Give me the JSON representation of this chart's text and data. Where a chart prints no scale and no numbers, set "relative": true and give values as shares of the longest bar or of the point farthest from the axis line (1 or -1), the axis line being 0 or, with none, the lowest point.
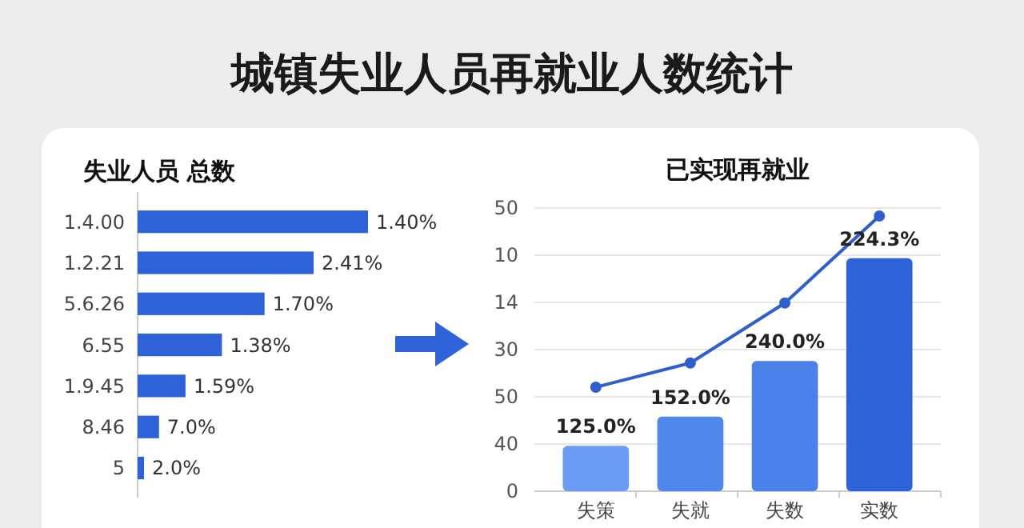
{
  "chart_data": [
    {
      "type": "bar",
      "title": "城镇失业人员再就业人数统计",
      "subtitle": "失业人员 总数",
      "orientation": "horizontal",
      "relative": true,
      "categories": [
        "1.4.00",
        "1.2.21",
        "5.6.26",
        "6.55",
        "1.9.45",
        "8.46",
        "5"
      ],
      "values": [
        1,
        0.764,
        0.551,
        0.366,
        0.208,
        0.093,
        0.028
      ],
      "color": "#2f62d8",
      "annotations": [
        {
          "text": "1.40%",
          "x": 1,
          "y": "1.4.00"
        },
        {
          "text": "2.41%",
          "x": 0.764,
          "y": "1.2.21"
        },
        {
          "text": "1.70%",
          "x": 0.551,
          "y": "5.6.26"
        },
        {
          "text": "1.38%",
          "x": 0.366,
          "y": "6.55"
        },
        {
          "text": "1.59%",
          "x": 0.208,
          "y": "1.9.45"
        },
        {
          "text": "7.0%",
          "x": 0.093,
          "y": "8.46"
        },
        {
          "text": "2.0%",
          "x": 0.028,
          "y": "5"
        }
      ]
    },
    {
      "type": "bar",
      "title": "已实现再就业",
      "categories": [
        "失策",
        "失就",
        "失数",
        "实数"
      ],
      "relative": true,
      "grid": "y",
      "annotations": [
        "0",
        "40",
        "50",
        "30",
        "14",
        "10",
        "50",
        {
          "text": "125.0%",
          "x": "失策",
          "y": 0.165
        },
        {
          "text": "152.0%",
          "x": "失就",
          "y": 0.271
        },
        {
          "text": "240.0%",
          "x": "失数",
          "y": 0.473
        },
        {
          "text": "224.3%",
          "x": "实数",
          "y": 0.847
        }
      ],
      "series": [
        {
          "type": "bar",
          "colors": [
            "#6b9cf5",
            "#4f87ec",
            "#4a80ea",
            "#2e62d9"
          ],
          "values": [
            0.165,
            0.271,
            0.473,
            0.847
          ]
        },
        {
          "type": "line",
          "color": "#2f5fce",
          "marker": "circle",
          "line_style": "solid",
          "values": [
            0.378,
            0.466,
            0.684,
            1
          ]
        }
      ]
    }
  ]
}
